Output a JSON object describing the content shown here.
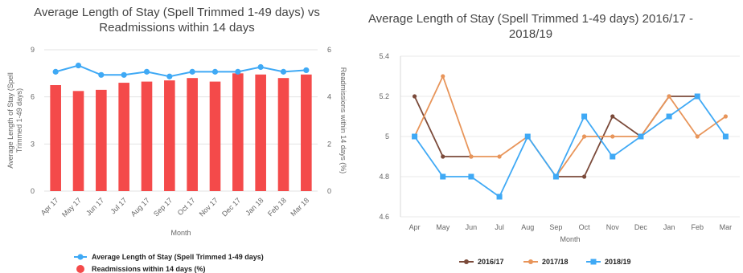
{
  "chart_data": [
    {
      "type": "bar",
      "title": "Average Length of Stay (Spell Trimmed 1-49 days) vs Readmissions within 14 days",
      "title_line1": "Average Length of Stay (Spell Trimmed 1-49 days) vs",
      "title_line2": "Readmissions within 14 days",
      "xlabel": "Month",
      "ylabel_left_line1": "Average Length of Stay (Spell",
      "ylabel_left_line2": "Trimmed 1-49 days)",
      "ylabel_right": "Readmissions within 14 days (%)",
      "categories": [
        "Apr 17",
        "May 17",
        "Jun 17",
        "Jul 17",
        "Aug 17",
        "Sep 17",
        "Oct 17",
        "Nov 17",
        "Dec 17",
        "Jan 18",
        "Feb 18",
        "Mar 18"
      ],
      "ylim_left": [
        0,
        9
      ],
      "yticks_left": [
        "0",
        "3",
        "6",
        "9"
      ],
      "ylim_right": [
        0,
        6
      ],
      "yticks_right": [
        "0",
        "2",
        "4",
        "6"
      ],
      "series": [
        {
          "name": "Average Length of Stay (Spell Trimmed 1-49 days)",
          "kind": "line",
          "axis": "left",
          "color": "#3fa9f5",
          "values": [
            7.6,
            8.0,
            7.4,
            7.4,
            7.6,
            7.3,
            7.6,
            7.6,
            7.6,
            7.9,
            7.6,
            7.7
          ]
        },
        {
          "name": "Readmissions within 14 days (%)",
          "kind": "bar",
          "axis": "right",
          "color": "#f44a4a",
          "values": [
            4.5,
            4.25,
            4.3,
            4.6,
            4.65,
            4.7,
            4.8,
            4.65,
            5.0,
            4.95,
            4.8,
            4.95
          ]
        }
      ],
      "legend_placement": "bottom",
      "grid": true
    },
    {
      "type": "line",
      "title": "Average Length of Stay (Spell Trimmed 1-49 days) 2016/17 - 2018/19",
      "title_line1": "Average Length of Stay (Spell Trimmed 1-49 days) 2016/17 -",
      "title_line2": "2018/19",
      "xlabel": "Month",
      "categories": [
        "Apr",
        "May",
        "Jun",
        "Jul",
        "Aug",
        "Sep",
        "Oct",
        "Nov",
        "Dec",
        "Jan",
        "Feb",
        "Mar"
      ],
      "ylim": [
        4.6,
        5.4
      ],
      "yticks": [
        "4.6",
        "4.8",
        "5",
        "5.2",
        "5.4"
      ],
      "series": [
        {
          "name": "2016/17",
          "color": "#7b4a3a",
          "marker": "circle",
          "values": [
            5.2,
            4.9,
            4.9,
            null,
            null,
            4.8,
            4.8,
            5.1,
            5.0,
            5.2,
            5.2,
            null
          ]
        },
        {
          "name": "2017/18",
          "color": "#e8955a",
          "marker": "circle",
          "values": [
            5.0,
            5.3,
            4.9,
            4.9,
            5.0,
            4.8,
            5.0,
            5.0,
            5.0,
            5.2,
            5.0,
            5.1
          ]
        },
        {
          "name": "2018/19",
          "color": "#3fa9f5",
          "marker": "square",
          "values": [
            5.0,
            4.8,
            4.8,
            4.7,
            5.0,
            4.8,
            5.1,
            4.9,
            5.0,
            5.1,
            5.2,
            5.0
          ]
        }
      ],
      "legend_placement": "bottom",
      "grid": true
    }
  ]
}
